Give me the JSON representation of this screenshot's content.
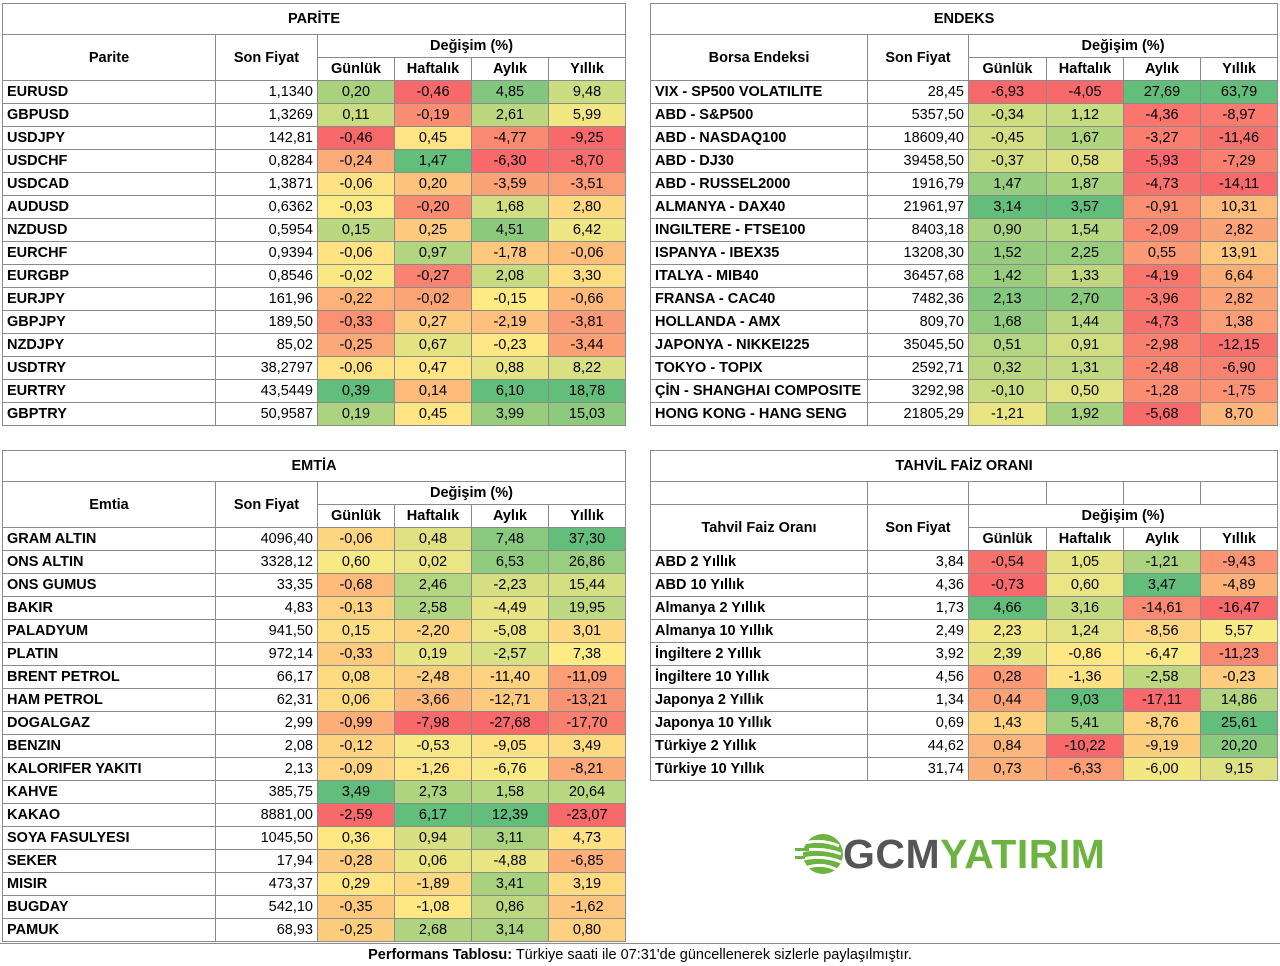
{
  "labels": {
    "son_fiyat": "Son Fiyat",
    "degisim": "Değişim (%)",
    "gunluk": "Günlük",
    "haftalik": "Haftalık",
    "aylik": "Aylık",
    "yillik": "Yıllık"
  },
  "parite": {
    "title": "PARİTE",
    "col_name": "Parite",
    "rows": [
      [
        "EURUSD",
        "1,1340",
        "0,20",
        "-0,46",
        "4,85",
        "9,48"
      ],
      [
        "GBPUSD",
        "1,3269",
        "0,11",
        "-0,19",
        "2,61",
        "5,99"
      ],
      [
        "USDJPY",
        "142,81",
        "-0,46",
        "0,45",
        "-4,77",
        "-9,25"
      ],
      [
        "USDCHF",
        "0,8284",
        "-0,24",
        "1,47",
        "-6,30",
        "-8,70"
      ],
      [
        "USDCAD",
        "1,3871",
        "-0,06",
        "0,20",
        "-3,59",
        "-3,51"
      ],
      [
        "AUDUSD",
        "0,6362",
        "-0,03",
        "-0,20",
        "1,68",
        "2,80"
      ],
      [
        "NZDUSD",
        "0,5954",
        "0,15",
        "0,25",
        "4,51",
        "6,42"
      ],
      [
        "EURCHF",
        "0,9394",
        "-0,06",
        "0,97",
        "-1,78",
        "-0,06"
      ],
      [
        "EURGBP",
        "0,8546",
        "-0,02",
        "-0,27",
        "2,08",
        "3,30"
      ],
      [
        "EURJPY",
        "161,96",
        "-0,22",
        "-0,02",
        "-0,15",
        "-0,66"
      ],
      [
        "GBPJPY",
        "189,50",
        "-0,33",
        "0,27",
        "-2,19",
        "-3,81"
      ],
      [
        "NZDJPY",
        "85,02",
        "-0,25",
        "0,67",
        "-0,23",
        "-3,44"
      ],
      [
        "USDTRY",
        "38,2797",
        "-0,06",
        "0,47",
        "0,88",
        "8,22"
      ],
      [
        "EURTRY",
        "43,5449",
        "0,39",
        "0,14",
        "6,10",
        "18,78"
      ],
      [
        "GBPTRY",
        "50,9587",
        "0,19",
        "0,45",
        "3,99",
        "15,03"
      ]
    ]
  },
  "endeks": {
    "title": "ENDEKS",
    "col_name": "Borsa Endeksi",
    "rows": [
      [
        "VIX  - SP500 VOLATILITE",
        "28,45",
        "-6,93",
        "-4,05",
        "27,69",
        "63,79"
      ],
      [
        "ABD - S&P500",
        "5357,50",
        "-0,34",
        "1,12",
        "-4,36",
        "-8,97"
      ],
      [
        "ABD - NASDAQ100",
        "18609,40",
        "-0,45",
        "1,67",
        "-3,27",
        "-11,46"
      ],
      [
        "ABD - DJ30",
        "39458,50",
        "-0,37",
        "0,58",
        "-5,93",
        "-7,29"
      ],
      [
        "ABD - RUSSEL2000",
        "1916,79",
        "1,47",
        "1,87",
        "-4,73",
        "-14,11"
      ],
      [
        "ALMANYA - DAX40",
        "21961,97",
        "3,14",
        "3,57",
        "-0,91",
        "10,31"
      ],
      [
        "INGILTERE - FTSE100",
        "8403,18",
        "0,90",
        "1,54",
        "-2,09",
        "2,82"
      ],
      [
        "ISPANYA - IBEX35",
        "13208,30",
        "1,52",
        "2,25",
        "0,55",
        "13,91"
      ],
      [
        "ITALYA - MIB40",
        "36457,68",
        "1,42",
        "1,33",
        "-4,19",
        "6,64"
      ],
      [
        "FRANSA - CAC40",
        "7482,36",
        "2,13",
        "2,70",
        "-3,96",
        "2,82"
      ],
      [
        "HOLLANDA - AMX",
        "809,70",
        "1,68",
        "1,44",
        "-4,73",
        "1,38"
      ],
      [
        "JAPONYA - NIKKEI225",
        "35045,50",
        "0,51",
        "0,91",
        "-2,98",
        "-12,15"
      ],
      [
        "TOKYO - TOPIX",
        "2592,71",
        "0,32",
        "1,31",
        "-2,48",
        "-6,90"
      ],
      [
        "ÇİN - SHANGHAI COMPOSITE",
        "3292,98",
        "-0,10",
        "0,50",
        "-1,28",
        "-1,75"
      ],
      [
        "HONG KONG - HANG SENG",
        "21805,29",
        "-1,21",
        "1,92",
        "-5,68",
        "8,70"
      ]
    ]
  },
  "emtia": {
    "title": "EMTİA",
    "col_name": "Emtia",
    "rows": [
      [
        "GRAM ALTIN",
        "4096,40",
        "-0,06",
        "0,48",
        "7,48",
        "37,30"
      ],
      [
        "ONS ALTIN",
        "3328,12",
        "0,60",
        "0,02",
        "6,53",
        "26,86"
      ],
      [
        "ONS GUMUS",
        "33,35",
        "-0,68",
        "2,46",
        "-2,23",
        "15,44"
      ],
      [
        "BAKIR",
        "4,83",
        "-0,13",
        "2,58",
        "-4,49",
        "19,95"
      ],
      [
        "PALADYUM",
        "941,50",
        "0,15",
        "-2,20",
        "-5,08",
        "3,01"
      ],
      [
        "PLATIN",
        "972,14",
        "-0,33",
        "0,19",
        "-2,57",
        "7,38"
      ],
      [
        "BRENT PETROL",
        "66,17",
        "0,08",
        "-2,48",
        "-11,40",
        "-11,09"
      ],
      [
        "HAM PETROL",
        "62,31",
        "0,06",
        "-3,66",
        "-12,71",
        "-13,21"
      ],
      [
        "DOGALGAZ",
        "2,99",
        "-0,99",
        "-7,98",
        "-27,68",
        "-17,70"
      ],
      [
        "BENZIN",
        "2,08",
        "-0,12",
        "-0,53",
        "-9,05",
        "3,49"
      ],
      [
        "KALORIFER YAKITI",
        "2,13",
        "-0,09",
        "-1,26",
        "-6,76",
        "-8,21"
      ],
      [
        "KAHVE",
        "385,75",
        "3,49",
        "2,73",
        "1,58",
        "20,64"
      ],
      [
        "KAKAO",
        "8881,00",
        "-2,59",
        "6,17",
        "12,39",
        "-23,07"
      ],
      [
        "SOYA FASULYESI",
        "1045,50",
        "0,36",
        "0,94",
        "3,11",
        "4,73"
      ],
      [
        "SEKER",
        "17,94",
        "-0,28",
        "0,06",
        "-4,88",
        "-6,85"
      ],
      [
        "MISIR",
        "473,37",
        "0,29",
        "-1,89",
        "3,41",
        "3,19"
      ],
      [
        "BUGDAY",
        "542,10",
        "-0,35",
        "-1,08",
        "0,86",
        "-1,62"
      ],
      [
        "PAMUK",
        "68,93",
        "-0,25",
        "2,68",
        "3,14",
        "0,80"
      ]
    ]
  },
  "tahvil": {
    "title": "TAHVİL FAİZ ORANI",
    "col_name": "Tahvil Faiz Oranı",
    "rows": [
      [
        "ABD 2 Yıllık",
        "3,84",
        "-0,54",
        "1,05",
        "-1,21",
        "-9,43"
      ],
      [
        "ABD 10 Yıllık",
        "4,36",
        "-0,73",
        "0,60",
        "3,47",
        "-4,89"
      ],
      [
        "Almanya 2 Yıllık",
        "1,73",
        "4,66",
        "3,16",
        "-14,61",
        "-16,47"
      ],
      [
        "Almanya 10 Yıllık",
        "2,49",
        "2,23",
        "1,24",
        "-8,56",
        "5,57"
      ],
      [
        "İngiltere 2 Yıllık",
        "3,92",
        "2,39",
        "-0,86",
        "-6,47",
        "-11,23"
      ],
      [
        "İngiltere 10 Yıllık",
        "4,56",
        "0,28",
        "-1,36",
        "-2,58",
        "-0,23"
      ],
      [
        "Japonya 2 Yıllık",
        "1,34",
        "0,44",
        "9,03",
        "-17,11",
        "14,86"
      ],
      [
        "Japonya 10 Yıllık",
        "0,69",
        "1,43",
        "5,41",
        "-8,76",
        "25,61"
      ],
      [
        "Türkiye 2 Yıllık",
        "44,62",
        "0,84",
        "-10,22",
        "-9,19",
        "20,20"
      ],
      [
        "Türkiye 10 Yıllık",
        "31,74",
        "0,73",
        "-6,33",
        "-6,00",
        "9,15"
      ]
    ]
  },
  "logo": {
    "text_a": "GCM",
    "text_b": "YATIRIM",
    "color_a": "#555555",
    "color_b": "#6db33f"
  },
  "footer": {
    "bold": "Performans Tablosu:",
    "text": " Türkiye saati ile 07:31'de güncellenerek sizlerle paylaşılmıştır."
  },
  "colors": {
    "red": "#f8696b",
    "yellow": "#ffeb84",
    "green": "#63be7b"
  }
}
